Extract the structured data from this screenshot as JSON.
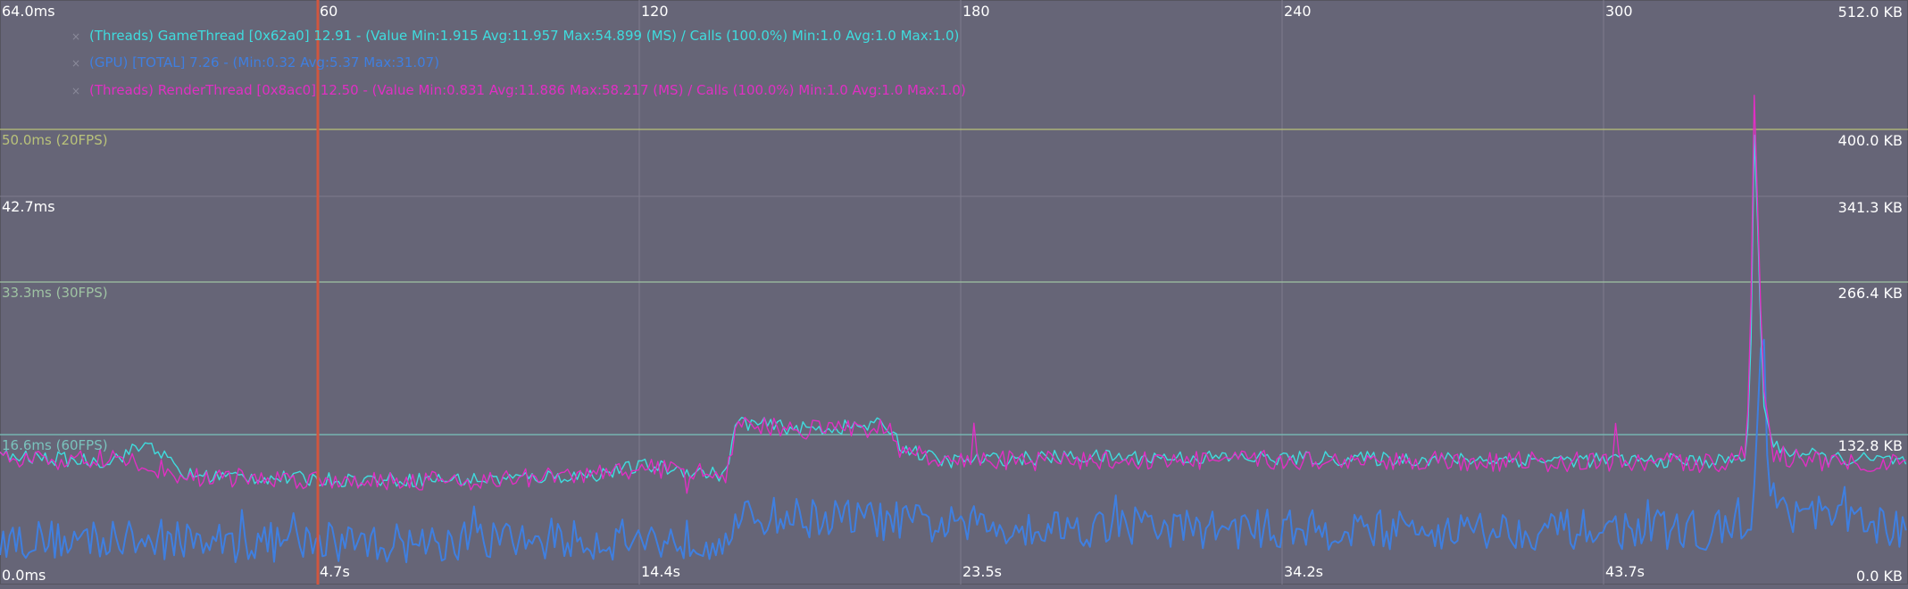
{
  "colors": {
    "background": "#666577",
    "grid": "#7d7c8c",
    "ref20": "#b9c27a",
    "ref30": "#9fc3a3",
    "ref60": "#7ac3bd",
    "game": "#3fdcde",
    "gpu": "#3f7fe0",
    "render": "#e02fc3",
    "cursor": "#d0563f"
  },
  "axes": {
    "left_top": "64.0ms",
    "left_mid": "42.7ms",
    "left_bottom": "0.0ms",
    "right_top": "512.0 KB",
    "right_400": "400.0 KB",
    "right_341": "341.3 KB",
    "right_266": "266.4 KB",
    "right_132": "132.8 KB",
    "right_bottom": "0.0 KB",
    "top_ticks": [
      "60",
      "120",
      "180",
      "240",
      "300"
    ],
    "bottom_ticks": [
      "4.7s",
      "14.4s",
      "23.5s",
      "34.2s",
      "43.7s"
    ]
  },
  "reference_lines": {
    "fps20": "50.0ms (20FPS)",
    "fps30": "33.3ms (30FPS)",
    "fps60": "16.6ms (60FPS)"
  },
  "legend": [
    {
      "label": "(Threads) GameThread [0x62a0] 12.91 - (Value Min:1.915 Avg:11.957 Max:54.899 (MS) / Calls (100.0%) Min:1.0 Avg:1.0 Max:1.0)",
      "color": "#3fdcde"
    },
    {
      "label": "(GPU) [TOTAL] 7.26 - (Min:0.32 Avg:5.37 Max:31.07)",
      "color": "#3f7fe0"
    },
    {
      "label": "(Threads) RenderThread [0x8ac0] 12.50 - (Value Min:0.831 Avg:11.886 Max:58.217 (MS) / Calls (100.0%) Min:1.0 Avg:1.0 Max:1.0)",
      "color": "#e02fc3"
    }
  ],
  "legend_close": "×",
  "chart_data": {
    "type": "line",
    "x_range": [
      0,
      355
    ],
    "ylim": [
      0,
      64
    ],
    "right_axis": "KB",
    "series": [
      {
        "name": "(Threads) GameThread [0x62a0]",
        "min": 1.915,
        "avg": 11.957,
        "max": 54.899,
        "profile": [
          [
            0,
            14
          ],
          [
            20,
            13.5
          ],
          [
            28,
            15.5
          ],
          [
            34,
            12
          ],
          [
            60,
            11.5
          ],
          [
            90,
            11.5
          ],
          [
            110,
            12
          ],
          [
            120,
            13
          ],
          [
            135,
            12
          ],
          [
            137,
            17.8
          ],
          [
            150,
            17
          ],
          [
            165,
            17.5
          ],
          [
            168,
            15
          ],
          [
            175,
            13.5
          ],
          [
            200,
            14
          ],
          [
            250,
            13.8
          ],
          [
            300,
            13.6
          ],
          [
            320,
            13.5
          ],
          [
            325,
            14
          ],
          [
            326,
            30
          ],
          [
            326.5,
            54
          ],
          [
            327,
            40
          ],
          [
            328,
            20
          ],
          [
            330,
            15
          ],
          [
            340,
            13.8
          ],
          [
            355,
            13.5
          ]
        ]
      },
      {
        "name": "(GPU) [TOTAL]",
        "min": 0.32,
        "avg": 5.37,
        "max": 31.07,
        "profile": [
          [
            0,
            5
          ],
          [
            60,
            4.5
          ],
          [
            134,
            5
          ],
          [
            140,
            7.5
          ],
          [
            160,
            7.2
          ],
          [
            175,
            6.5
          ],
          [
            240,
            6
          ],
          [
            320,
            6
          ],
          [
            326,
            6
          ],
          [
            327,
            18
          ],
          [
            328,
            31
          ],
          [
            329,
            10
          ],
          [
            332,
            8
          ],
          [
            355,
            6
          ]
        ]
      },
      {
        "name": "(Threads) RenderThread [0x8ac0]",
        "min": 0.831,
        "avg": 11.886,
        "max": 58.217,
        "profile": [
          [
            0,
            13.5
          ],
          [
            20,
            13.8
          ],
          [
            28,
            13
          ],
          [
            34,
            11.8
          ],
          [
            60,
            11.5
          ],
          [
            90,
            11.4
          ],
          [
            110,
            12
          ],
          [
            120,
            12.8
          ],
          [
            135,
            12
          ],
          [
            137,
            17.5
          ],
          [
            150,
            17
          ],
          [
            165,
            17.2
          ],
          [
            168,
            14.5
          ],
          [
            175,
            13.5
          ],
          [
            200,
            13.6
          ],
          [
            250,
            13.6
          ],
          [
            300,
            13.4
          ],
          [
            320,
            13.3
          ],
          [
            325,
            15
          ],
          [
            326,
            35
          ],
          [
            326.5,
            58.2
          ],
          [
            327,
            42
          ],
          [
            328,
            22
          ],
          [
            330,
            14
          ],
          [
            340,
            13.5
          ],
          [
            355,
            13.4
          ]
        ]
      }
    ]
  }
}
